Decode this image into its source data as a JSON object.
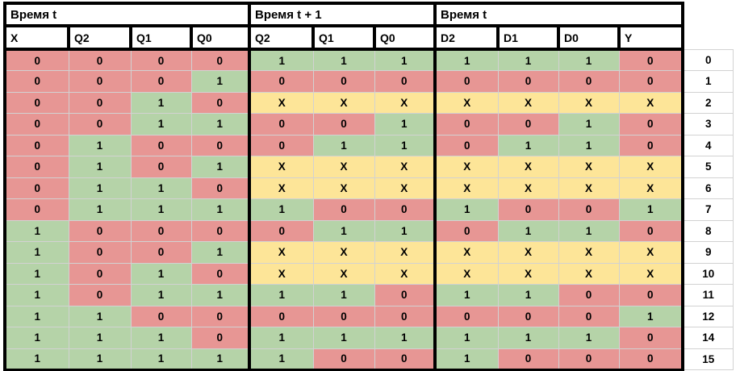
{
  "palette": {
    "red": "#e79694",
    "green": "#b5d3a8",
    "yellow": "#fde598",
    "border": "#000000",
    "gridline": "#d2d2d2"
  },
  "table": {
    "sections": [
      {
        "title": "Время t",
        "columns": [
          "X",
          "Q2",
          "Q1",
          "Q0"
        ]
      },
      {
        "title": "Время t + 1",
        "columns": [
          "Q2",
          "Q1",
          "Q0"
        ]
      },
      {
        "title": "Время t",
        "columns": [
          "D2",
          "D1",
          "D0",
          "Y"
        ]
      }
    ],
    "column_keys": [
      "x",
      "q2-t",
      "q1-t",
      "q0-t",
      "q2-t1",
      "q1-t1",
      "q0-t1",
      "d2",
      "d1",
      "d0",
      "y"
    ],
    "rows": [
      {
        "label": "0",
        "values": [
          "0",
          "0",
          "0",
          "0",
          "1",
          "1",
          "1",
          "1",
          "1",
          "1",
          "0"
        ],
        "colors": [
          "r",
          "r",
          "r",
          "r",
          "g",
          "g",
          "g",
          "g",
          "g",
          "g",
          "r"
        ]
      },
      {
        "label": "1",
        "values": [
          "0",
          "0",
          "0",
          "1",
          "0",
          "0",
          "0",
          "0",
          "0",
          "0",
          "0"
        ],
        "colors": [
          "r",
          "r",
          "r",
          "g",
          "r",
          "r",
          "r",
          "r",
          "r",
          "r",
          "r"
        ]
      },
      {
        "label": "2",
        "values": [
          "0",
          "0",
          "1",
          "0",
          "X",
          "X",
          "X",
          "X",
          "X",
          "X",
          "X"
        ],
        "colors": [
          "r",
          "r",
          "g",
          "r",
          "y",
          "y",
          "y",
          "y",
          "y",
          "y",
          "y"
        ]
      },
      {
        "label": "3",
        "values": [
          "0",
          "0",
          "1",
          "1",
          "0",
          "0",
          "1",
          "0",
          "0",
          "1",
          "0"
        ],
        "colors": [
          "r",
          "r",
          "g",
          "g",
          "r",
          "r",
          "g",
          "r",
          "r",
          "g",
          "r"
        ]
      },
      {
        "label": "4",
        "values": [
          "0",
          "1",
          "0",
          "0",
          "0",
          "1",
          "1",
          "0",
          "1",
          "1",
          "0"
        ],
        "colors": [
          "r",
          "g",
          "r",
          "r",
          "r",
          "g",
          "g",
          "r",
          "g",
          "g",
          "r"
        ]
      },
      {
        "label": "5",
        "values": [
          "0",
          "1",
          "0",
          "1",
          "X",
          "X",
          "X",
          "X",
          "X",
          "X",
          "X"
        ],
        "colors": [
          "r",
          "g",
          "r",
          "g",
          "y",
          "y",
          "y",
          "y",
          "y",
          "y",
          "y"
        ]
      },
      {
        "label": "6",
        "values": [
          "0",
          "1",
          "1",
          "0",
          "X",
          "X",
          "X",
          "X",
          "X",
          "X",
          "X"
        ],
        "colors": [
          "r",
          "g",
          "g",
          "r",
          "y",
          "y",
          "y",
          "y",
          "y",
          "y",
          "y"
        ]
      },
      {
        "label": "7",
        "values": [
          "0",
          "1",
          "1",
          "1",
          "1",
          "0",
          "0",
          "1",
          "0",
          "0",
          "1"
        ],
        "colors": [
          "r",
          "g",
          "g",
          "g",
          "g",
          "r",
          "r",
          "g",
          "r",
          "r",
          "g"
        ]
      },
      {
        "label": "8",
        "values": [
          "1",
          "0",
          "0",
          "0",
          "0",
          "1",
          "1",
          "0",
          "1",
          "1",
          "0"
        ],
        "colors": [
          "g",
          "r",
          "r",
          "r",
          "r",
          "g",
          "g",
          "r",
          "g",
          "g",
          "r"
        ]
      },
      {
        "label": "9",
        "values": [
          "1",
          "0",
          "0",
          "1",
          "X",
          "X",
          "X",
          "X",
          "X",
          "X",
          "X"
        ],
        "colors": [
          "g",
          "r",
          "r",
          "g",
          "y",
          "y",
          "y",
          "y",
          "y",
          "y",
          "y"
        ]
      },
      {
        "label": "10",
        "values": [
          "1",
          "0",
          "1",
          "0",
          "X",
          "X",
          "X",
          "X",
          "X",
          "X",
          "X"
        ],
        "colors": [
          "g",
          "r",
          "g",
          "r",
          "y",
          "y",
          "y",
          "y",
          "y",
          "y",
          "y"
        ]
      },
      {
        "label": "11",
        "values": [
          "1",
          "0",
          "1",
          "1",
          "1",
          "1",
          "0",
          "1",
          "1",
          "0",
          "0"
        ],
        "colors": [
          "g",
          "r",
          "g",
          "g",
          "g",
          "g",
          "r",
          "g",
          "g",
          "r",
          "r"
        ]
      },
      {
        "label": "12",
        "values": [
          "1",
          "1",
          "0",
          "0",
          "0",
          "0",
          "0",
          "0",
          "0",
          "0",
          "1"
        ],
        "colors": [
          "g",
          "g",
          "r",
          "r",
          "r",
          "r",
          "r",
          "r",
          "r",
          "r",
          "g"
        ]
      },
      {
        "label": "14",
        "values": [
          "1",
          "1",
          "1",
          "0",
          "1",
          "1",
          "1",
          "1",
          "1",
          "1",
          "0"
        ],
        "colors": [
          "g",
          "g",
          "g",
          "r",
          "g",
          "g",
          "g",
          "g",
          "g",
          "g",
          "r"
        ]
      },
      {
        "label": "15",
        "values": [
          "1",
          "1",
          "1",
          "1",
          "1",
          "0",
          "0",
          "1",
          "0",
          "0",
          "0"
        ],
        "colors": [
          "g",
          "g",
          "g",
          "g",
          "g",
          "r",
          "r",
          "g",
          "r",
          "r",
          "r"
        ]
      }
    ]
  }
}
